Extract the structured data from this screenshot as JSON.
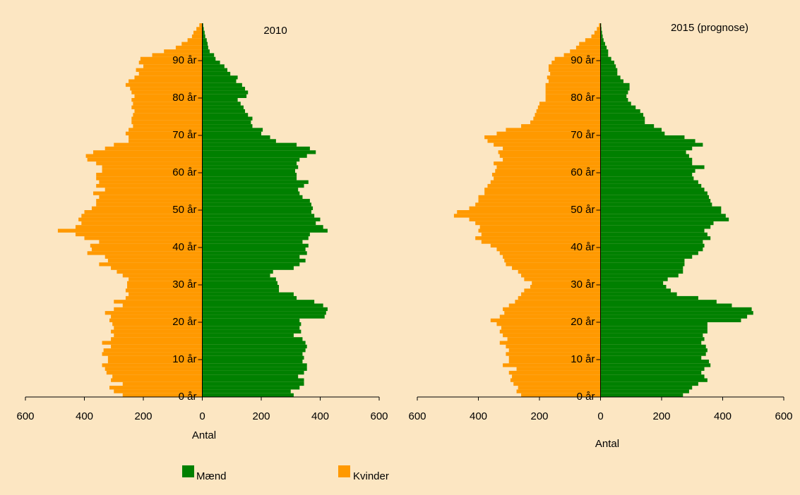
{
  "chart_data": [
    {
      "type": "pyramid",
      "title": "2010",
      "xlabel": "Antal",
      "x": [
        0,
        1,
        2,
        3,
        4,
        5,
        6,
        7,
        8,
        9,
        10,
        11,
        12,
        13,
        14,
        15,
        16,
        17,
        18,
        19,
        20,
        21,
        22,
        23,
        24,
        25,
        26,
        27,
        28,
        29,
        30,
        31,
        32,
        33,
        34,
        35,
        36,
        37,
        38,
        39,
        40,
        41,
        42,
        43,
        44,
        45,
        46,
        47,
        48,
        49,
        50,
        51,
        52,
        53,
        54,
        55,
        56,
        57,
        58,
        59,
        60,
        61,
        62,
        63,
        64,
        65,
        66,
        67,
        68,
        69,
        70,
        71,
        72,
        73,
        74,
        75,
        76,
        77,
        78,
        79,
        80,
        81,
        82,
        83,
        84,
        85,
        86,
        87,
        88,
        89,
        90,
        91,
        92,
        93,
        94,
        95,
        96,
        97,
        98,
        99
      ],
      "xlim": [
        -600,
        600
      ],
      "xticks": [
        {
          "value": -600,
          "label": "600"
        },
        {
          "value": -400,
          "label": "400"
        },
        {
          "value": -200,
          "label": "200"
        },
        0,
        200,
        400,
        600
      ],
      "ylim": [
        0,
        100
      ],
      "yticks": [
        {
          "value": 0,
          "label": "0 år"
        },
        {
          "value": 10,
          "label": "10 år"
        },
        {
          "value": 20,
          "label": "20 år"
        },
        {
          "value": 30,
          "label": "30 år"
        },
        {
          "value": 40,
          "label": "40 år"
        },
        {
          "value": 50,
          "label": "50 år"
        },
        {
          "value": 60,
          "label": "60 år"
        },
        {
          "value": 70,
          "label": "70 år"
        },
        {
          "value": 80,
          "label": "80 år"
        },
        {
          "value": 90,
          "label": "90 år"
        }
      ],
      "series": [
        {
          "name": "Mænd",
          "color": "#008000",
          "side": "right",
          "values": [
            310,
            300,
            330,
            345,
            345,
            325,
            345,
            355,
            355,
            340,
            345,
            340,
            350,
            355,
            350,
            340,
            310,
            335,
            330,
            335,
            330,
            415,
            420,
            425,
            410,
            380,
            320,
            310,
            260,
            260,
            255,
            250,
            230,
            240,
            310,
            330,
            350,
            330,
            355,
            350,
            360,
            340,
            360,
            365,
            425,
            410,
            385,
            400,
            380,
            370,
            375,
            370,
            365,
            340,
            330,
            325,
            345,
            360,
            320,
            320,
            315,
            325,
            320,
            330,
            355,
            385,
            365,
            320,
            250,
            230,
            200,
            205,
            170,
            165,
            170,
            155,
            145,
            140,
            130,
            120,
            150,
            155,
            145,
            135,
            115,
            120,
            95,
            85,
            75,
            60,
            45,
            40,
            25,
            20,
            18,
            15,
            10,
            8,
            5,
            3
          ]
        },
        {
          "name": "Kvinder",
          "color": "#ff9900",
          "side": "left",
          "values": [
            270,
            300,
            315,
            270,
            310,
            305,
            325,
            330,
            340,
            320,
            320,
            340,
            335,
            310,
            340,
            310,
            300,
            310,
            300,
            305,
            315,
            310,
            330,
            300,
            270,
            300,
            260,
            250,
            260,
            255,
            255,
            250,
            270,
            290,
            310,
            350,
            320,
            330,
            390,
            375,
            380,
            350,
            400,
            430,
            490,
            430,
            410,
            420,
            410,
            400,
            375,
            360,
            360,
            350,
            370,
            330,
            360,
            350,
            360,
            360,
            340,
            340,
            360,
            390,
            395,
            370,
            330,
            300,
            250,
            250,
            260,
            250,
            235,
            240,
            240,
            235,
            230,
            240,
            235,
            240,
            230,
            240,
            245,
            260,
            250,
            230,
            215,
            225,
            200,
            215,
            210,
            170,
            130,
            90,
            70,
            50,
            35,
            30,
            20,
            10
          ]
        }
      ]
    },
    {
      "type": "pyramid",
      "title": "2015 (prognose)",
      "xlabel": "Antal",
      "x": [
        0,
        1,
        2,
        3,
        4,
        5,
        6,
        7,
        8,
        9,
        10,
        11,
        12,
        13,
        14,
        15,
        16,
        17,
        18,
        19,
        20,
        21,
        22,
        23,
        24,
        25,
        26,
        27,
        28,
        29,
        30,
        31,
        32,
        33,
        34,
        35,
        36,
        37,
        38,
        39,
        40,
        41,
        42,
        43,
        44,
        45,
        46,
        47,
        48,
        49,
        50,
        51,
        52,
        53,
        54,
        55,
        56,
        57,
        58,
        59,
        60,
        61,
        62,
        63,
        64,
        65,
        66,
        67,
        68,
        69,
        70,
        71,
        72,
        73,
        74,
        75,
        76,
        77,
        78,
        79,
        80,
        81,
        82,
        83,
        84,
        85,
        86,
        87,
        88,
        89,
        90,
        91,
        92,
        93,
        94,
        95,
        96,
        97,
        98,
        99
      ],
      "xlim": [
        -600,
        600
      ],
      "xticks": [
        {
          "value": -600,
          "label": "600"
        },
        {
          "value": -400,
          "label": "400"
        },
        {
          "value": -200,
          "label": "200"
        },
        0,
        200,
        400,
        600
      ],
      "ylim": [
        0,
        100
      ],
      "yticks": [
        {
          "value": 0,
          "label": "0 år"
        },
        {
          "value": 10,
          "label": "10 år"
        },
        {
          "value": 20,
          "label": "20 år"
        },
        {
          "value": 30,
          "label": "30 år"
        },
        {
          "value": 40,
          "label": "40 år"
        },
        {
          "value": 50,
          "label": "50 år"
        },
        {
          "value": 60,
          "label": "60 år"
        },
        {
          "value": 70,
          "label": "70 år"
        },
        {
          "value": 80,
          "label": "80 år"
        },
        {
          "value": 90,
          "label": "90 år"
        }
      ],
      "series": [
        {
          "color": "#008000",
          "side": "right",
          "values": [
            270,
            290,
            300,
            320,
            350,
            340,
            330,
            340,
            360,
            355,
            330,
            345,
            350,
            345,
            330,
            340,
            335,
            350,
            350,
            350,
            460,
            480,
            500,
            495,
            430,
            380,
            320,
            250,
            230,
            215,
            205,
            220,
            255,
            270,
            270,
            275,
            275,
            300,
            320,
            335,
            340,
            335,
            360,
            350,
            340,
            360,
            370,
            420,
            410,
            395,
            395,
            365,
            360,
            355,
            350,
            340,
            330,
            320,
            305,
            300,
            310,
            340,
            300,
            300,
            290,
            280,
            300,
            335,
            310,
            275,
            210,
            200,
            175,
            145,
            145,
            140,
            130,
            115,
            100,
            90,
            85,
            90,
            95,
            95,
            75,
            65,
            55,
            55,
            50,
            45,
            35,
            25,
            25,
            20,
            15,
            10,
            7,
            5,
            3,
            2
          ]
        },
        {
          "color": "#ff9900",
          "side": "left",
          "values": [
            260,
            275,
            270,
            285,
            295,
            290,
            300,
            275,
            320,
            300,
            300,
            310,
            300,
            310,
            330,
            305,
            320,
            330,
            325,
            340,
            360,
            330,
            315,
            320,
            300,
            280,
            270,
            260,
            250,
            230,
            225,
            250,
            260,
            270,
            290,
            310,
            315,
            320,
            330,
            340,
            360,
            390,
            410,
            390,
            400,
            395,
            410,
            430,
            480,
            470,
            430,
            410,
            400,
            400,
            380,
            380,
            370,
            360,
            350,
            355,
            345,
            340,
            350,
            320,
            330,
            335,
            320,
            350,
            370,
            380,
            340,
            310,
            260,
            230,
            220,
            215,
            210,
            205,
            200,
            180,
            180,
            180,
            180,
            180,
            170,
            175,
            165,
            170,
            170,
            160,
            150,
            120,
            100,
            80,
            70,
            50,
            30,
            20,
            12,
            5
          ]
        }
      ]
    }
  ]
}
